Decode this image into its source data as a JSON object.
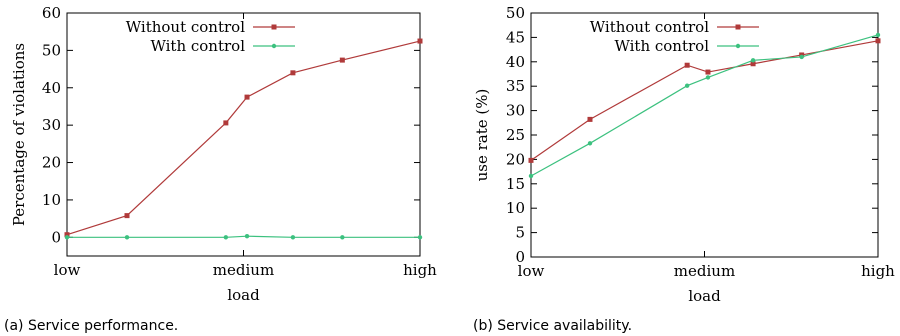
{
  "colors": {
    "without": "#b03a3a",
    "with": "#3cc17f"
  },
  "chart_data": [
    {
      "type": "line",
      "caption": "(a) Service performance.",
      "xlabel": "load",
      "ylabel": "Percentage of violations",
      "xticks": [
        "low",
        "medium",
        "high"
      ],
      "xlim": [
        0,
        1
      ],
      "ylim": [
        -5,
        60
      ],
      "yticks": [
        0,
        10,
        20,
        30,
        40,
        50,
        60
      ],
      "legend": "top-left",
      "series": [
        {
          "name": "Without control",
          "marker": "square",
          "x": [
            0,
            0.17,
            0.45,
            0.51,
            0.64,
            0.78,
            1.0
          ],
          "y": [
            0.7,
            5.8,
            30.6,
            37.5,
            44.0,
            47.4,
            52.5
          ]
        },
        {
          "name": "With control",
          "marker": "circle",
          "x": [
            0,
            0.17,
            0.45,
            0.51,
            0.64,
            0.78,
            1.0
          ],
          "y": [
            0,
            0,
            0,
            0.3,
            0,
            0,
            0
          ]
        }
      ]
    },
    {
      "type": "line",
      "caption": "(b) Service availability.",
      "xlabel": "load",
      "ylabel": "use rate (%)",
      "xticks": [
        "low",
        "medium",
        "high"
      ],
      "xlim": [
        0,
        1
      ],
      "ylim": [
        0,
        50
      ],
      "yticks": [
        0,
        5,
        10,
        15,
        20,
        25,
        30,
        35,
        40,
        45,
        50
      ],
      "legend": "top-left",
      "series": [
        {
          "name": "Without control",
          "marker": "square",
          "x": [
            0,
            0.17,
            0.45,
            0.51,
            0.64,
            0.78,
            1.0
          ],
          "y": [
            19.8,
            28.2,
            39.3,
            37.9,
            39.6,
            41.4,
            44.3
          ]
        },
        {
          "name": "With control",
          "marker": "circle",
          "x": [
            0,
            0.17,
            0.45,
            0.51,
            0.64,
            0.78,
            1.0
          ],
          "y": [
            16.6,
            23.3,
            35.1,
            36.8,
            40.3,
            41.0,
            45.5
          ]
        }
      ]
    }
  ]
}
